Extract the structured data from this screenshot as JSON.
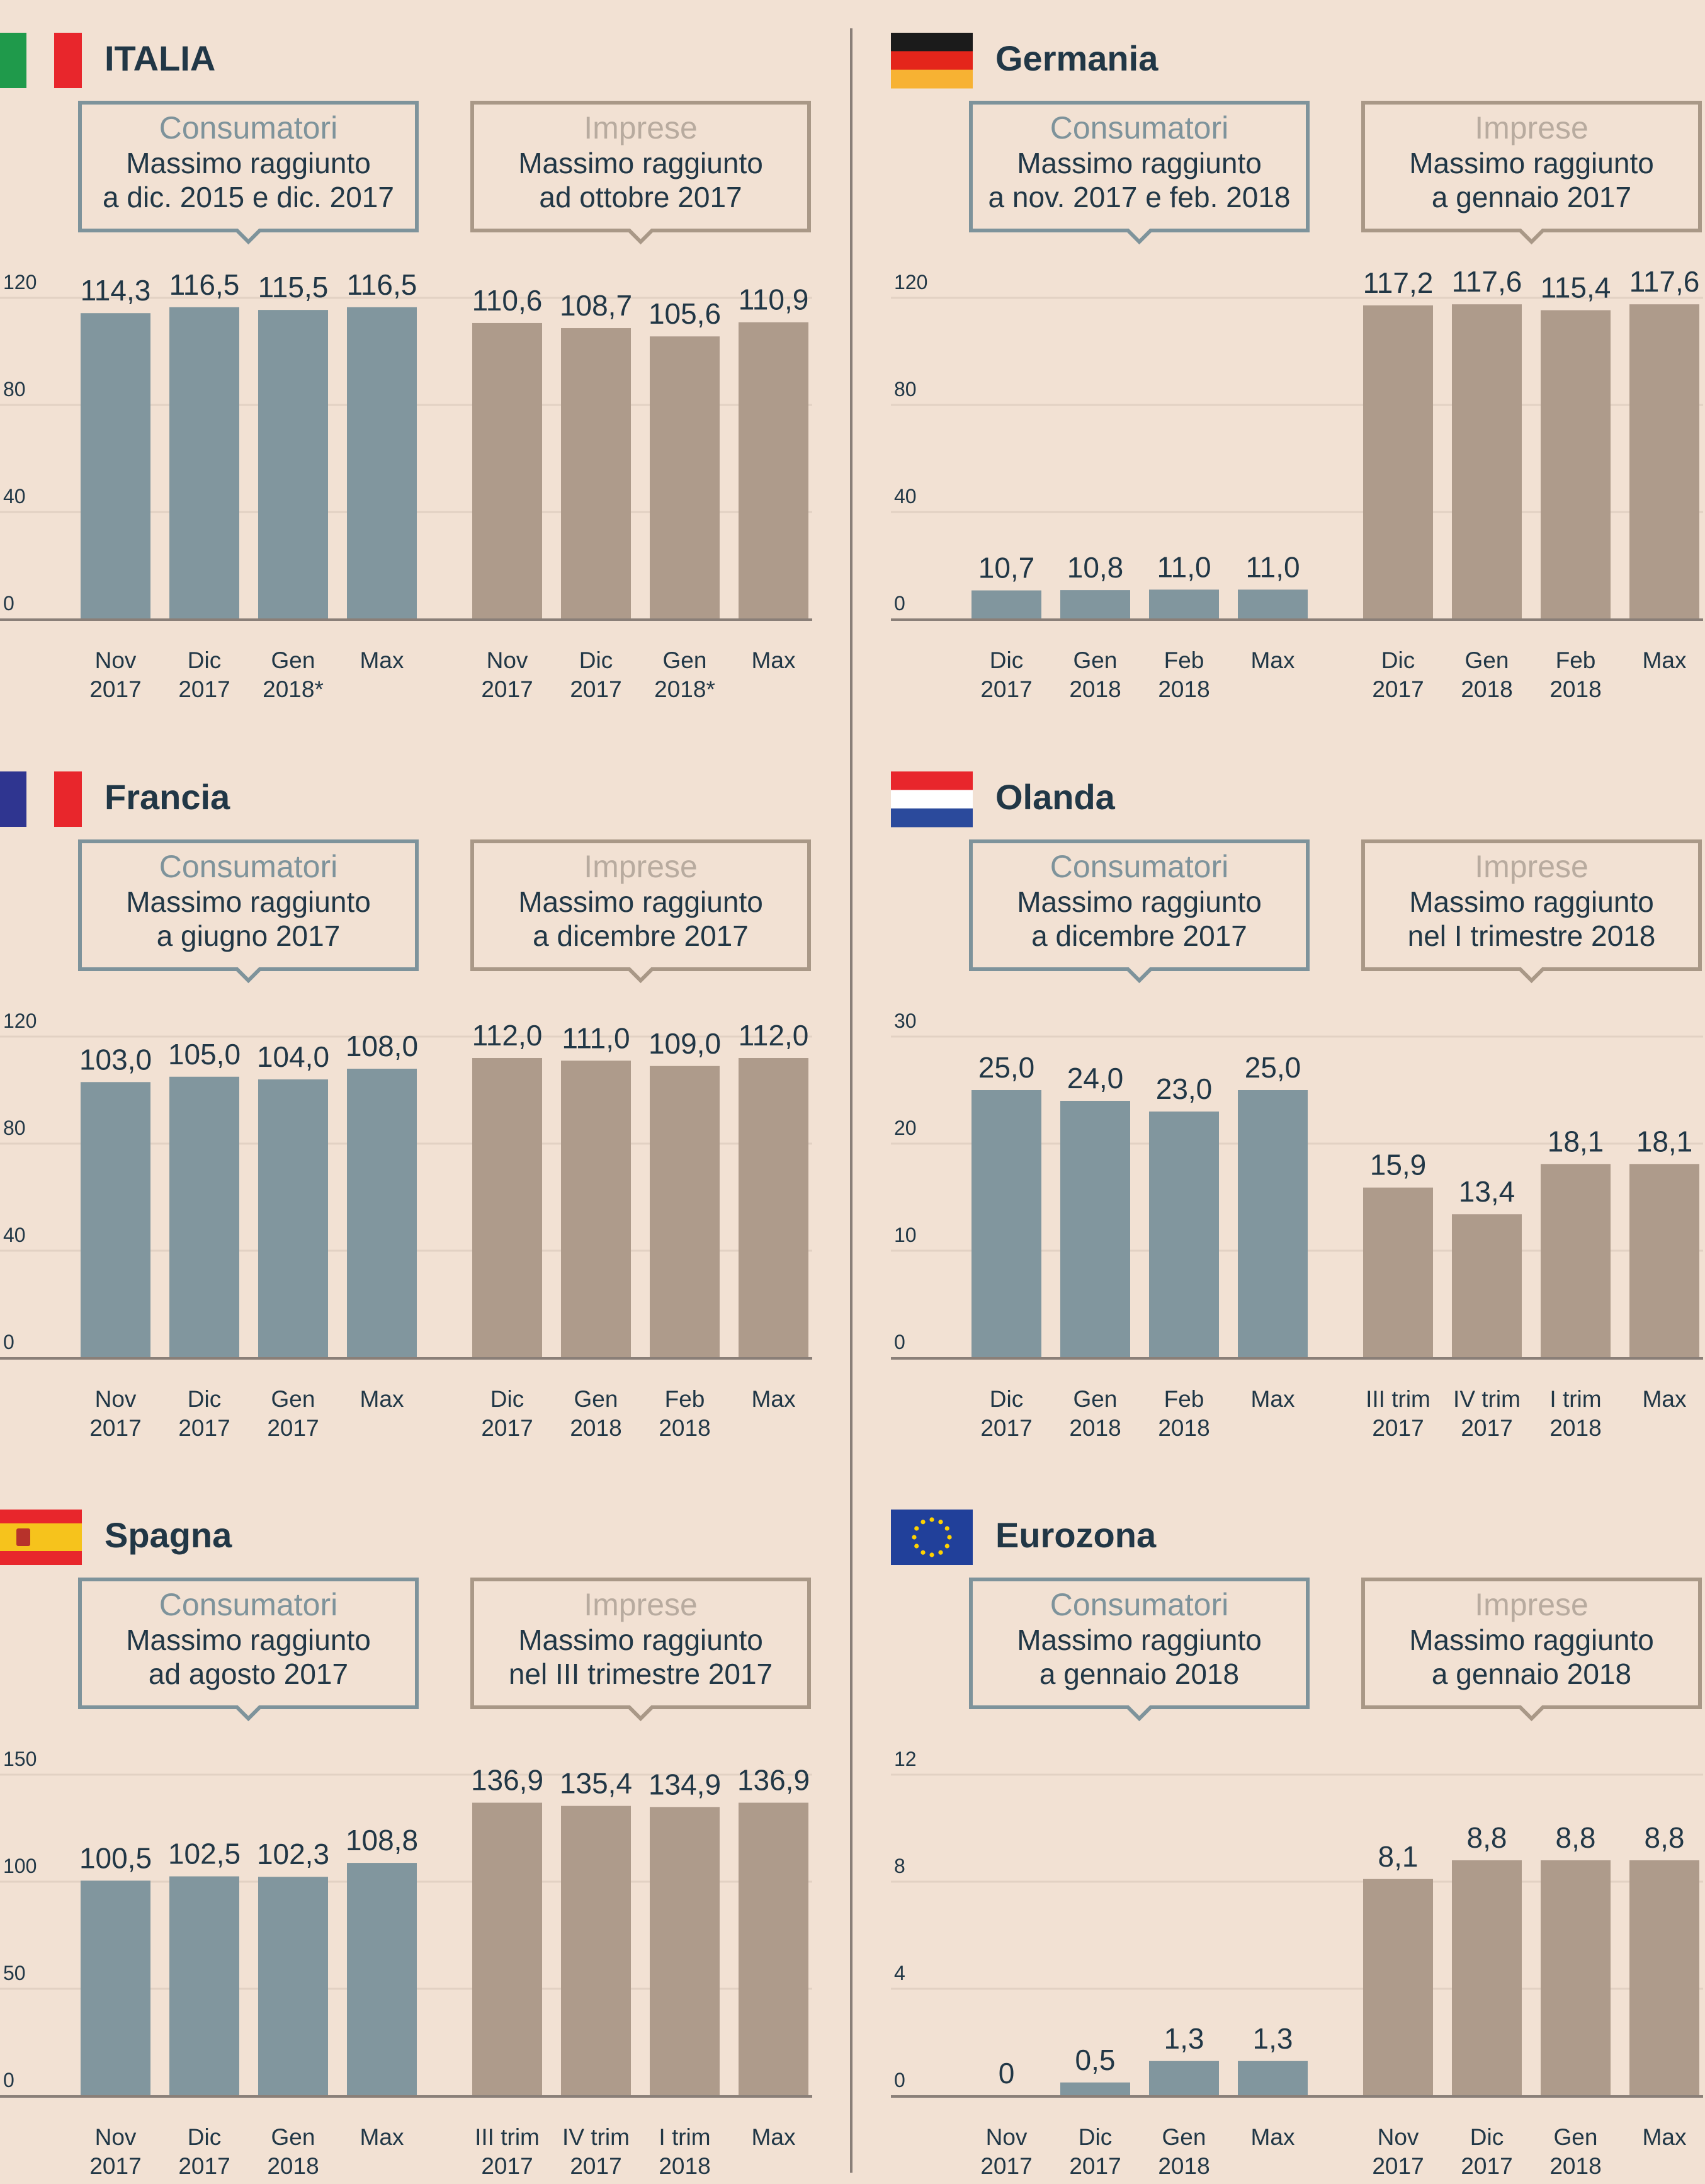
{
  "colors": {
    "background": "#f2e1d3",
    "consumers_bar": "#81969e",
    "business_bar": "#ae9b8b",
    "consumers_box": "#7e939b",
    "business_box": "#a99887",
    "heading_text": "#213746",
    "business_title_text": "#b8ab9f",
    "axis": "#8a7f78",
    "grid": "#e2d1c3",
    "divider": "#8a7f78"
  },
  "chart_data": [
    {
      "country": "ITALIA",
      "flag": "italy-flag",
      "type": "bar",
      "ylim": [
        0,
        120
      ],
      "yticks": [
        "0",
        "40",
        "80",
        "120"
      ],
      "boxes": [
        {
          "title": "Consumatori",
          "line1": "Massimo raggiunto",
          "line2": "a dic. 2015 e dic. 2017"
        },
        {
          "title": "Imprese",
          "line1": "Massimo raggiunto",
          "line2": "ad ottobre 2017"
        }
      ],
      "series": [
        {
          "name": "Consumatori",
          "categories": [
            [
              "Nov",
              "2017"
            ],
            [
              "Dic",
              "2017"
            ],
            [
              "Gen",
              "2018*"
            ],
            [
              "Max",
              ""
            ]
          ],
          "values": [
            114.3,
            116.5,
            115.5,
            116.5
          ],
          "labels": [
            "114,3",
            "116,5",
            "115,5",
            "116,5"
          ]
        },
        {
          "name": "Imprese",
          "categories": [
            [
              "Nov",
              "2017"
            ],
            [
              "Dic",
              "2017"
            ],
            [
              "Gen",
              "2018*"
            ],
            [
              "Max",
              ""
            ]
          ],
          "values": [
            110.6,
            108.7,
            105.6,
            110.9
          ],
          "labels": [
            "110,6",
            "108,7",
            "105,6",
            "110,9"
          ]
        }
      ]
    },
    {
      "country": "Germania",
      "flag": "germany-flag",
      "type": "bar",
      "ylim": [
        0,
        120
      ],
      "yticks": [
        "0",
        "40",
        "80",
        "120"
      ],
      "boxes": [
        {
          "title": "Consumatori",
          "line1": "Massimo raggiunto",
          "line2": "a nov. 2017 e feb. 2018"
        },
        {
          "title": "Imprese",
          "line1": "Massimo raggiunto",
          "line2": "a gennaio 2017"
        }
      ],
      "series": [
        {
          "name": "Consumatori",
          "categories": [
            [
              "Dic",
              "2017"
            ],
            [
              "Gen",
              "2018"
            ],
            [
              "Feb",
              "2018"
            ],
            [
              "Max",
              ""
            ]
          ],
          "values": [
            10.7,
            10.8,
            11.0,
            11.0
          ],
          "labels": [
            "10,7",
            "10,8",
            "11,0",
            "11,0"
          ]
        },
        {
          "name": "Imprese",
          "categories": [
            [
              "Dic",
              "2017"
            ],
            [
              "Gen",
              "2018"
            ],
            [
              "Feb",
              "2018"
            ],
            [
              "Max",
              ""
            ]
          ],
          "values": [
            117.2,
            117.6,
            115.4,
            117.6
          ],
          "labels": [
            "117,2",
            "117,6",
            "115,4",
            "117,6"
          ]
        }
      ]
    },
    {
      "country": "Francia",
      "flag": "france-flag",
      "type": "bar",
      "ylim": [
        0,
        120
      ],
      "yticks": [
        "0",
        "40",
        "80",
        "120"
      ],
      "boxes": [
        {
          "title": "Consumatori",
          "line1": "Massimo raggiunto",
          "line2": "a giugno 2017"
        },
        {
          "title": "Imprese",
          "line1": "Massimo raggiunto",
          "line2": "a dicembre 2017"
        }
      ],
      "series": [
        {
          "name": "Consumatori",
          "categories": [
            [
              "Nov",
              "2017"
            ],
            [
              "Dic",
              "2017"
            ],
            [
              "Gen",
              "2017"
            ],
            [
              "Max",
              ""
            ]
          ],
          "values": [
            103.0,
            105.0,
            104.0,
            108.0
          ],
          "labels": [
            "103,0",
            "105,0",
            "104,0",
            "108,0"
          ]
        },
        {
          "name": "Imprese",
          "categories": [
            [
              "Dic",
              "2017"
            ],
            [
              "Gen",
              "2018"
            ],
            [
              "Feb",
              "2018"
            ],
            [
              "Max",
              ""
            ]
          ],
          "values": [
            112.0,
            111.0,
            109.0,
            112.0
          ],
          "labels": [
            "112,0",
            "111,0",
            "109,0",
            "112,0"
          ]
        }
      ]
    },
    {
      "country": "Olanda",
      "flag": "netherlands-flag",
      "type": "bar",
      "ylim": [
        0,
        30
      ],
      "yticks": [
        "0",
        "10",
        "20",
        "30"
      ],
      "boxes": [
        {
          "title": "Consumatori",
          "line1": "Massimo raggiunto",
          "line2": "a dicembre 2017"
        },
        {
          "title": "Imprese",
          "line1": "Massimo raggiunto",
          "line2": "nel I trimestre 2018"
        }
      ],
      "series": [
        {
          "name": "Consumatori",
          "categories": [
            [
              "Dic",
              "2017"
            ],
            [
              "Gen",
              "2018"
            ],
            [
              "Feb",
              "2018"
            ],
            [
              "Max",
              ""
            ]
          ],
          "values": [
            25.0,
            24.0,
            23.0,
            25.0
          ],
          "labels": [
            "25,0",
            "24,0",
            "23,0",
            "25,0"
          ]
        },
        {
          "name": "Imprese",
          "categories": [
            [
              "III trim",
              "2017"
            ],
            [
              "IV trim",
              "2017"
            ],
            [
              "I trim",
              "2018"
            ],
            [
              "Max",
              ""
            ]
          ],
          "values": [
            15.9,
            13.4,
            18.1,
            18.1
          ],
          "labels": [
            "15,9",
            "13,4",
            "18,1",
            "18,1"
          ]
        }
      ]
    },
    {
      "country": "Spagna",
      "flag": "spain-flag",
      "type": "bar",
      "ylim": [
        0,
        150
      ],
      "yticks": [
        "0",
        "50",
        "100",
        "150"
      ],
      "boxes": [
        {
          "title": "Consumatori",
          "line1": "Massimo raggiunto",
          "line2": "ad agosto 2017"
        },
        {
          "title": "Imprese",
          "line1": "Massimo raggiunto",
          "line2": "nel III trimestre 2017"
        }
      ],
      "series": [
        {
          "name": "Consumatori",
          "categories": [
            [
              "Nov",
              "2017"
            ],
            [
              "Dic",
              "2017"
            ],
            [
              "Gen",
              "2018"
            ],
            [
              "Max",
              ""
            ]
          ],
          "values": [
            100.5,
            102.5,
            102.3,
            108.8
          ],
          "labels": [
            "100,5",
            "102,5",
            "102,3",
            "108,8"
          ]
        },
        {
          "name": "Imprese",
          "categories": [
            [
              "III trim",
              "2017"
            ],
            [
              "IV trim",
              "2017"
            ],
            [
              "I trim",
              "2018"
            ],
            [
              "Max",
              ""
            ]
          ],
          "values": [
            136.9,
            135.4,
            134.9,
            136.9
          ],
          "labels": [
            "136,9",
            "135,4",
            "134,9",
            "136,9"
          ]
        }
      ]
    },
    {
      "country": "Eurozona",
      "flag": "eu-flag",
      "type": "bar",
      "ylim": [
        0,
        12
      ],
      "yticks": [
        "0",
        "4",
        "8",
        "12"
      ],
      "boxes": [
        {
          "title": "Consumatori",
          "line1": "Massimo raggiunto",
          "line2": "a gennaio 2018"
        },
        {
          "title": "Imprese",
          "line1": "Massimo raggiunto",
          "line2": "a gennaio 2018"
        }
      ],
      "series": [
        {
          "name": "Consumatori",
          "categories": [
            [
              "Nov",
              "2017"
            ],
            [
              "Dic",
              "2017"
            ],
            [
              "Gen",
              "2018"
            ],
            [
              "Max",
              ""
            ]
          ],
          "values": [
            0,
            0.5,
            1.3,
            1.3
          ],
          "labels": [
            "0",
            "0,5",
            "1,3",
            "1,3"
          ]
        },
        {
          "name": "Imprese",
          "categories": [
            [
              "Nov",
              "2017"
            ],
            [
              "Dic",
              "2017"
            ],
            [
              "Gen",
              "2018"
            ],
            [
              "Max",
              ""
            ]
          ],
          "values": [
            8.1,
            8.8,
            8.8,
            8.8
          ],
          "labels": [
            "8,1",
            "8,8",
            "8,8",
            "8,8"
          ]
        }
      ]
    }
  ]
}
